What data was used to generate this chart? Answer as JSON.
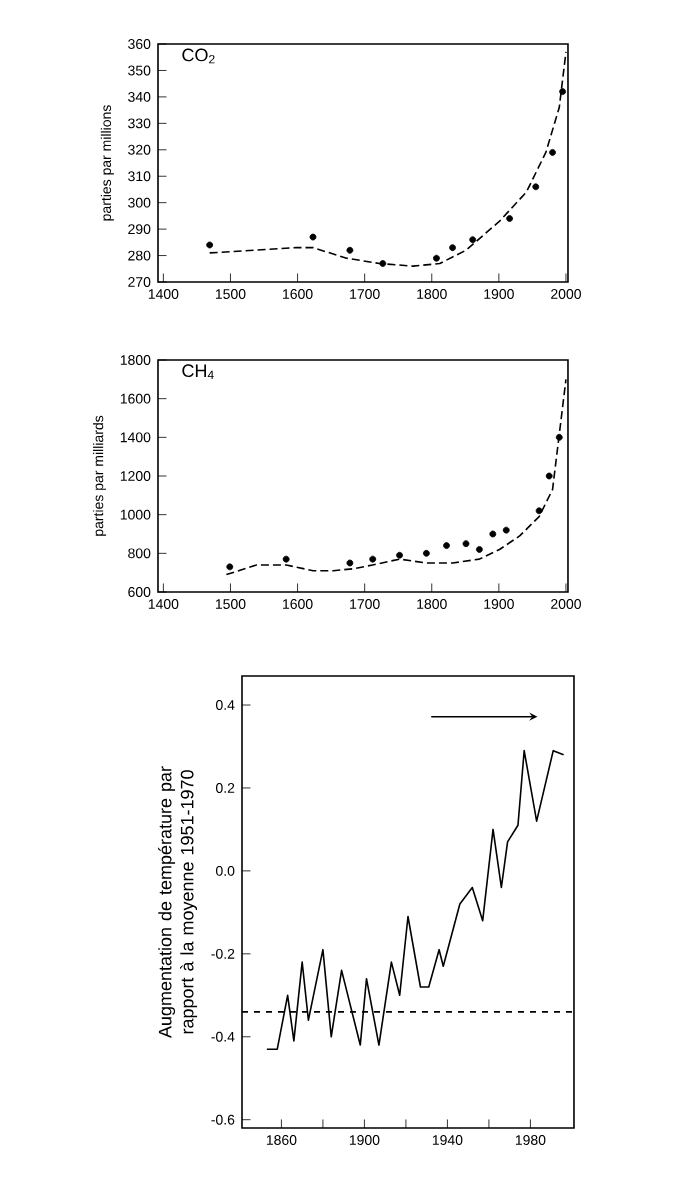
{
  "chart_data": [
    {
      "type": "line",
      "title": "CO$_{2}$",
      "ylabel": "parties par millions",
      "xlim": [
        1392,
        2003
      ],
      "ylim": [
        270,
        360
      ],
      "xticks": [
        1400,
        1500,
        1600,
        1700,
        1800,
        1900,
        2000
      ],
      "yticks": [
        270,
        280,
        290,
        300,
        310,
        320,
        330,
        340,
        350,
        360
      ],
      "series": [
        {
          "line_style": "dashed",
          "color": "#000000",
          "x": [
            1469,
            1598,
            1623,
            1673,
            1722,
            1772,
            1812,
            1851,
            1901,
            1941,
            1970,
            1990,
            2000
          ],
          "values": [
            281,
            283,
            283,
            279,
            277,
            276,
            277,
            282,
            293,
            304,
            319,
            336,
            357
          ]
        },
        {
          "type": "scatter",
          "color": "#000000",
          "x": [
            1469,
            1623,
            1678,
            1727,
            1807,
            1831,
            1861,
            1916,
            1955,
            1980,
            1995
          ],
          "values": [
            284,
            287,
            282,
            277,
            279,
            283,
            286,
            294,
            306,
            319,
            342
          ]
        }
      ]
    },
    {
      "type": "line",
      "title": "CH$_{4}$",
      "ylabel": "parties par milliards",
      "xlim": [
        1392,
        2003
      ],
      "ylim": [
        600,
        1800
      ],
      "xticks": [
        1400,
        1500,
        1600,
        1700,
        1800,
        1900,
        2000
      ],
      "yticks": [
        600,
        800,
        1000,
        1200,
        1400,
        1600,
        1800
      ],
      "series": [
        {
          "line_style": "dashed",
          "color": "#000000",
          "x": [
            1494,
            1539,
            1583,
            1623,
            1653,
            1683,
            1712,
            1752,
            1792,
            1831,
            1871,
            1901,
            1931,
            1960,
            1980,
            2000
          ],
          "values": [
            690,
            740,
            740,
            710,
            710,
            720,
            740,
            770,
            750,
            750,
            770,
            820,
            890,
            990,
            1130,
            1700
          ]
        },
        {
          "type": "scatter",
          "color": "#000000",
          "x": [
            1499,
            1583,
            1678,
            1712,
            1752,
            1792,
            1822,
            1851,
            1871,
            1891,
            1911,
            1960,
            1975,
            1990
          ],
          "values": [
            730,
            770,
            750,
            770,
            790,
            800,
            840,
            850,
            820,
            900,
            920,
            1020,
            1200,
            1400
          ]
        }
      ]
    },
    {
      "type": "line",
      "ylabel": "Augmentation de température par rapport à la moyenne 1951-1970",
      "xlim": [
        1841,
        2001
      ],
      "ylim": [
        -0.62,
        0.47
      ],
      "xticks": [
        1860,
        {
          "value": 1880,
          "label": null
        },
        1900,
        {
          "value": 1920,
          "label": null
        },
        1940,
        {
          "value": 1960,
          "label": null
        },
        1980
      ],
      "yticks": [
        -0.6,
        -0.4,
        -0.2,
        {
          "value": 0,
          "label": "0.0"
        },
        0.2,
        0.4
      ],
      "ref_lines": [
        {
          "axis": "y",
          "value": -0.34,
          "line_style": "dashed"
        }
      ],
      "series": [
        {
          "line_style": "solid",
          "color": "#000000",
          "x": [
            1853,
            1858,
            1863,
            1866,
            1870,
            1873,
            1880,
            1884,
            1889,
            1898,
            1901,
            1907,
            1913,
            1917,
            1921,
            1927,
            1931,
            1936,
            1938,
            1946,
            1952,
            1957,
            1962,
            1966,
            1969,
            1974,
            1977,
            1983,
            1991,
            1996
          ],
          "values": [
            -0.43,
            -0.43,
            -0.3,
            -0.41,
            -0.22,
            -0.36,
            -0.19,
            -0.4,
            -0.24,
            -0.42,
            -0.26,
            -0.42,
            -0.22,
            -0.3,
            -0.11,
            -0.28,
            -0.28,
            -0.19,
            -0.23,
            -0.08,
            -0.04,
            -0.12,
            0.1,
            -0.04,
            0.07,
            0.11,
            0.29,
            0.12,
            0.29,
            0.28
          ]
        }
      ]
    }
  ]
}
